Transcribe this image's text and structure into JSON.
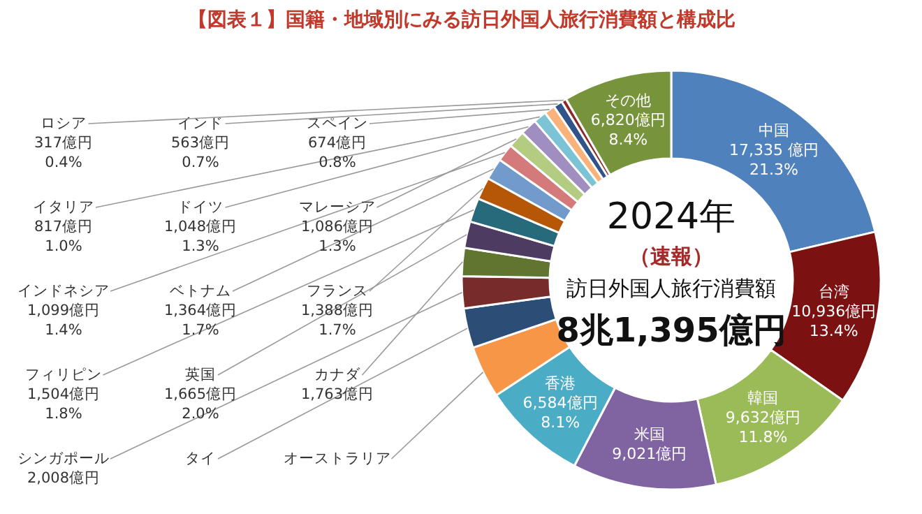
{
  "chart_data": {
    "type": "donut",
    "title": "【図表１】国籍・地域別にみる訪日外国人旅行消費額と構成比",
    "categories": [
      "中国",
      "台湾",
      "韓国",
      "米国",
      "香港",
      "オーストラリア",
      "タイ",
      "シンガポール",
      "カナダ",
      "英国",
      "フィリピン",
      "フランス",
      "ベトナム",
      "インドネシア",
      "マレーシア",
      "ドイツ",
      "イタリア",
      "スペイン",
      "インド",
      "ロシア",
      "その他"
    ],
    "values": [
      17335,
      10936,
      9632,
      9021,
      6584,
      3280,
      2491,
      2008,
      1763,
      1665,
      1504,
      1388,
      1364,
      1099,
      1086,
      1048,
      817,
      674,
      563,
      317,
      6820
    ],
    "colors": [
      "#4f81bd",
      "#7b1111",
      "#9bbb59",
      "#8064a2",
      "#4bacc6",
      "#f79646",
      "#2c4d75",
      "#772c2a",
      "#5f7530",
      "#4d3b62",
      "#276a7c",
      "#b65708",
      "#729aca",
      "#d47a7a",
      "#b3cc82",
      "#a18ec0",
      "#7cc3d6",
      "#f8b27a",
      "#30548a",
      "#8c2a2a",
      "#77933c"
    ],
    "value_labels": [
      "17,335 億円\n21.3%",
      "10,936億円\n13.4%",
      "9,632億円\n11.8%",
      "9,021億円",
      "6,584億円\n8.1%",
      null,
      null,
      "2,008億円",
      "1,763億円",
      "1,665億円\n2.0%",
      "1,504億円\n1.8%",
      "1,388億円\n1.7%",
      "1,364億円\n1.7%",
      "1,099億円\n1.4%",
      "1,086億円\n1.3%",
      "1,048億円\n1.3%",
      "817億円\n1.0%",
      "674億円\n0.8%",
      "563億円\n0.7%",
      "317億円\n0.4%",
      "6,820億円\n8.4%"
    ],
    "annotations": [
      "2024年",
      "（速報）",
      "訪日外国人旅行消費額",
      "8兆1,395億円"
    ]
  }
}
